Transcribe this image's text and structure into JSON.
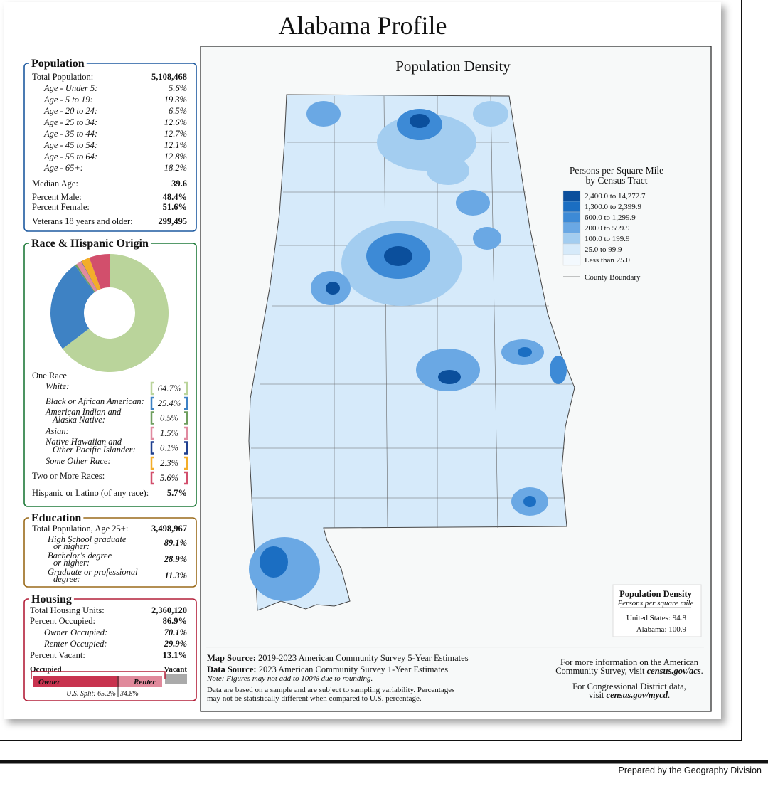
{
  "title": "Alabama Profile",
  "population": {
    "heading": "Population",
    "total": {
      "label": "Total Population:",
      "value": "5,108,468"
    },
    "ages": [
      {
        "label": "Age - Under 5:",
        "value": "5.6%"
      },
      {
        "label": "Age - 5 to 19:",
        "value": "19.3%"
      },
      {
        "label": "Age - 20 to 24:",
        "value": "6.5%"
      },
      {
        "label": "Age - 25 to 34:",
        "value": "12.6%"
      },
      {
        "label": "Age - 35 to 44:",
        "value": "12.7%"
      },
      {
        "label": "Age - 45 to 54:",
        "value": "12.1%"
      },
      {
        "label": "Age - 55 to 64:",
        "value": "12.8%"
      },
      {
        "label": "Age - 65+:",
        "value": "18.2%"
      }
    ],
    "median": {
      "label": "Median Age:",
      "value": "39.6"
    },
    "male": {
      "label": "Percent Male:",
      "value": "48.4%"
    },
    "female": {
      "label": "Percent Female:",
      "value": "51.6%"
    },
    "veterans": {
      "label": "Veterans 18 years and older:",
      "value": "299,495"
    }
  },
  "race": {
    "heading": "Race & Hispanic Origin",
    "one_race": "One Race",
    "items": [
      {
        "label": [
          "White:"
        ],
        "value": 64.7,
        "value_label": "64.7%",
        "color": "#bad49b"
      },
      {
        "label": [
          "Black or African American:"
        ],
        "value": 25.4,
        "value_label": "25.4%",
        "color": "#3e82c4"
      },
      {
        "label": [
          "American Indian and",
          "Alaska Native:"
        ],
        "value": 0.5,
        "value_label": "0.5%",
        "color": "#6e9e5e"
      },
      {
        "label": [
          "Asian:"
        ],
        "value": 1.5,
        "value_label": "1.5%",
        "color": "#e08aa0"
      },
      {
        "label": [
          "Native Hawaiian and",
          "Other Pacific Islander:"
        ],
        "value": 0.1,
        "value_label": "0.1%",
        "color": "#1f3f8f"
      },
      {
        "label": [
          "Some Other Race:"
        ],
        "value": 2.3,
        "value_label": "2.3%",
        "color": "#f3ad2a"
      },
      {
        "label": [
          "Two or More Races:"
        ],
        "value": 5.6,
        "value_label": "5.6%",
        "color": "#d24f6c"
      }
    ],
    "hispanic": {
      "label": "Hispanic or Latino (of any race):",
      "value": "5.7%"
    }
  },
  "education": {
    "heading": "Education",
    "total": {
      "label": "Total Population, Age 25+:",
      "value": "3,498,967"
    },
    "rows": [
      {
        "label": [
          "High School  graduate",
          "or higher:"
        ],
        "value": "89.1%"
      },
      {
        "label": [
          "Bachelor's degree",
          "or higher:"
        ],
        "value": "28.9%"
      },
      {
        "label": [
          "Graduate or professional",
          "degree:"
        ],
        "value": "11.3%"
      }
    ]
  },
  "housing": {
    "heading": "Housing",
    "total": {
      "label": "Total Housing Units:",
      "value": "2,360,120"
    },
    "occupied": {
      "label": "Percent Occupied:",
      "value": "86.9%"
    },
    "owner": {
      "label": "Owner Occupied:",
      "value": "70.1%"
    },
    "renter": {
      "label": "Renter Occupied:",
      "value": "29.9%"
    },
    "vacant": {
      "label": "Percent Vacant:",
      "value": "13.1%"
    },
    "bar": {
      "occupied": "Occupied",
      "vacant": "Vacant",
      "owner": "Owner",
      "renter": "Renter",
      "us_split": "U.S. Split: 65.2%",
      "us_renter": "34.8%"
    }
  },
  "map": {
    "title": "Population Density",
    "legend": {
      "title": [
        "Persons per Square Mile",
        "by Census Tract"
      ],
      "bins": [
        {
          "label": "2,400.0 to 14,272.7",
          "color": "#0b4f9c"
        },
        {
          "label": "1,300.0 to 2,399.9",
          "color": "#1b6ec2"
        },
        {
          "label": "600.0 to 1,299.9",
          "color": "#3d8ad6"
        },
        {
          "label": "200.0 to 599.9",
          "color": "#6aa8e4"
        },
        {
          "label": "100.0 to 199.9",
          "color": "#a3cdf0"
        },
        {
          "label": "25.0 to 99.9",
          "color": "#d6eafa"
        },
        {
          "label": "Less than 25.0",
          "color": "#f3f9fe"
        }
      ],
      "boundary": "County Boundary"
    },
    "inset": {
      "title": "Population Density",
      "subtitle": "Persons per square mile",
      "us": "United States:  94.8",
      "al": "Alabama:  100.9"
    }
  },
  "sources": {
    "map_label": "Map Source:",
    "map": " 2019-2023 American Community Survey 5-Year Estimates",
    "data_label": "Data Source:",
    "data": " 2023 American Community Survey 1-Year Estimates",
    "note": "Note: Figures may not add to 100% due to rounding.",
    "sampling": [
      "Data are based on a sample and are subject to sampling variability. Percentages",
      "may not be statistically different when compared to U.S. percentage."
    ],
    "more_info": [
      "For more information on the American",
      "Community Survey, visit "
    ],
    "more_info_link": "census.gov/acs",
    "cd": [
      "For Congressional District data,",
      "visit "
    ],
    "cd_link": "census.gov/mycd",
    "period": "."
  },
  "footer": "Prepared by the Geography Division"
}
